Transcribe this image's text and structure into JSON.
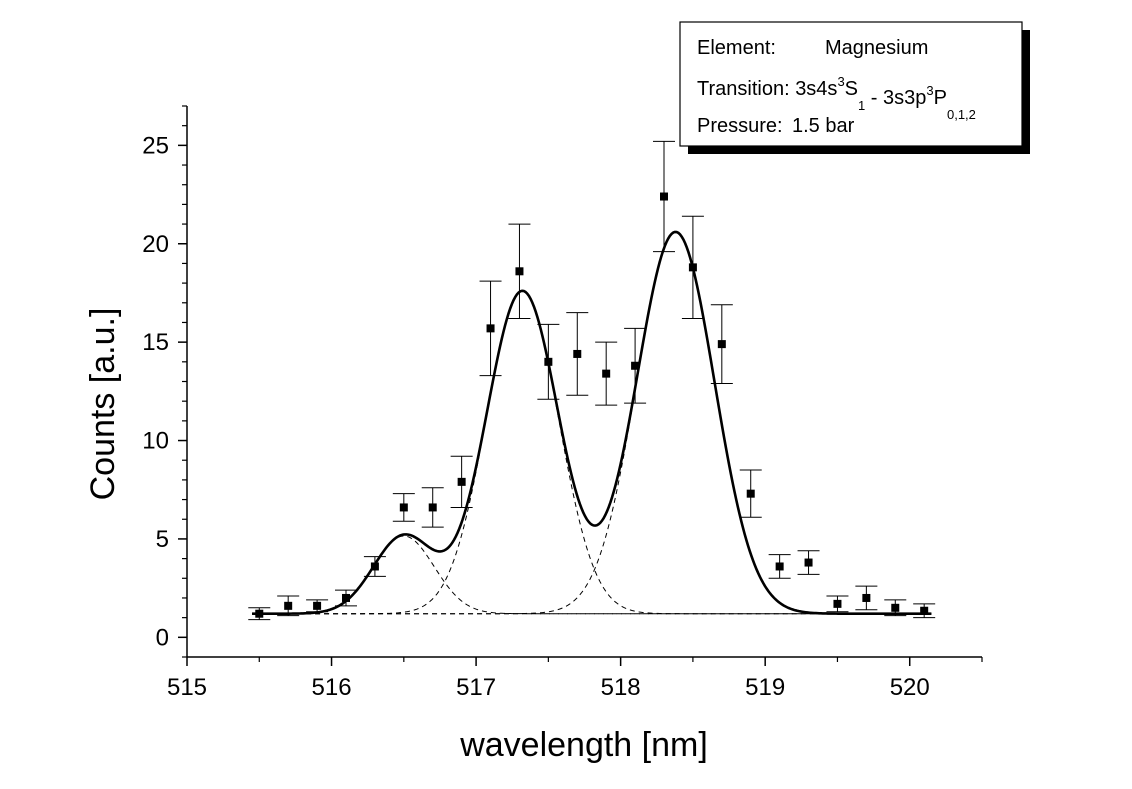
{
  "chart_data": {
    "type": "scatter",
    "xlabel": "wavelength [nm]",
    "ylabel": "Counts [a.u.]",
    "xlim": [
      515,
      520.5
    ],
    "ylim": [
      -1,
      27
    ],
    "x_ticks": [
      "515",
      "516",
      "517",
      "518",
      "519",
      "520"
    ],
    "y_ticks": [
      "0",
      "5",
      "10",
      "15",
      "20",
      "25"
    ],
    "grid": false,
    "legend_box": {
      "placement": "top-right",
      "element_label": "Element:",
      "element_value": "Magnesium",
      "transition_label": "Transition:",
      "transition_parts": [
        "3s4s",
        "3",
        "S",
        "1",
        " - 3s3p",
        "3",
        "P",
        "0,1,2"
      ],
      "pressure_label": "Pressure:",
      "pressure_value": "1.5 bar"
    },
    "points": [
      {
        "x": 515.5,
        "y": 1.2,
        "err": 0.3
      },
      {
        "x": 515.7,
        "y": 1.6,
        "err": 0.5
      },
      {
        "x": 515.9,
        "y": 1.6,
        "err": 0.3
      },
      {
        "x": 516.1,
        "y": 2.0,
        "err": 0.4
      },
      {
        "x": 516.3,
        "y": 3.6,
        "err": 0.5
      },
      {
        "x": 516.5,
        "y": 6.6,
        "err": 0.7
      },
      {
        "x": 516.7,
        "y": 6.6,
        "err": 1.0
      },
      {
        "x": 516.9,
        "y": 7.9,
        "err": 1.3
      },
      {
        "x": 517.1,
        "y": 15.7,
        "err": 2.4
      },
      {
        "x": 517.3,
        "y": 18.6,
        "err": 2.4
      },
      {
        "x": 517.5,
        "y": 14.0,
        "err": 1.9
      },
      {
        "x": 517.7,
        "y": 14.4,
        "err": 2.1
      },
      {
        "x": 517.9,
        "y": 13.4,
        "err": 1.6
      },
      {
        "x": 518.1,
        "y": 13.8,
        "err": 1.9
      },
      {
        "x": 518.3,
        "y": 22.4,
        "err": 2.8
      },
      {
        "x": 518.5,
        "y": 18.8,
        "err": 2.6
      },
      {
        "x": 518.7,
        "y": 14.9,
        "err": 2.0
      },
      {
        "x": 518.9,
        "y": 7.3,
        "err": 1.2
      },
      {
        "x": 519.1,
        "y": 3.6,
        "err": 0.6
      },
      {
        "x": 519.3,
        "y": 3.8,
        "err": 0.6
      },
      {
        "x": 519.5,
        "y": 1.7,
        "err": 0.4
      },
      {
        "x": 519.7,
        "y": 2.0,
        "err": 0.6
      },
      {
        "x": 519.9,
        "y": 1.5,
        "err": 0.4
      },
      {
        "x": 520.1,
        "y": 1.35,
        "err": 0.35
      }
    ],
    "fit": {
      "baseline": 1.2,
      "components": [
        {
          "center": 516.5,
          "amplitude": 3.95,
          "sigma": 0.21
        },
        {
          "center": 517.32,
          "amplitude": 16.4,
          "sigma": 0.25
        },
        {
          "center": 518.38,
          "amplitude": 19.4,
          "sigma": 0.27
        }
      ],
      "x_range": [
        515.45,
        520.15
      ]
    }
  }
}
